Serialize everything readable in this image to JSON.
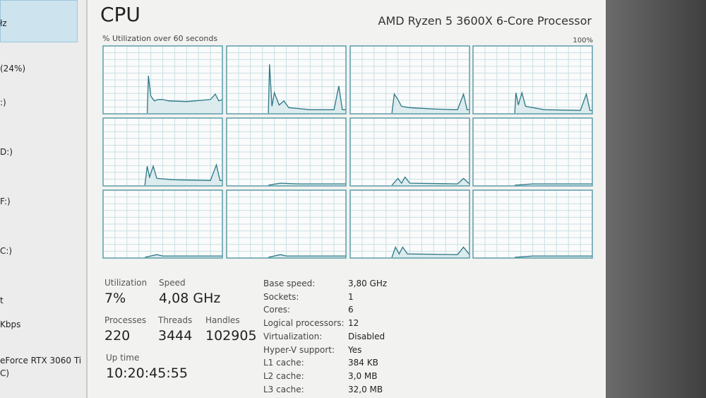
{
  "sidebar": {
    "items": [
      "łz",
      "(24%)",
      ":)",
      "D:)",
      "F:)",
      "C:)",
      "t",
      "Kbps",
      "eForce RTX 3060 Ti",
      "C)"
    ]
  },
  "header": {
    "title": "CPU",
    "processor": "AMD Ryzen 5 3600X 6-Core Processor",
    "graph_caption": "% Utilization over 60 seconds",
    "graph_max": "100%"
  },
  "stats": [
    {
      "label": "Utilization",
      "value": "7%"
    },
    {
      "label": "Speed",
      "value": "4,08 GHz"
    },
    {
      "label": "Processes",
      "value": "220"
    },
    {
      "label": "Threads",
      "value": "3444"
    },
    {
      "label": "Handles",
      "value": "102905"
    },
    {
      "label": "Up time",
      "value": "10:20:45:55"
    }
  ],
  "specs": [
    [
      "Base speed:",
      "3,80 GHz"
    ],
    [
      "Sockets:",
      "1"
    ],
    [
      "Cores:",
      "6"
    ],
    [
      "Logical processors:",
      "12"
    ],
    [
      "Virtualization:",
      "Disabled"
    ],
    [
      "Hyper-V support:",
      "Yes"
    ],
    [
      "L1 cache:",
      "384 KB"
    ],
    [
      "L2 cache:",
      "3,0 MB"
    ],
    [
      "L3 cache:",
      "32,0 MB"
    ]
  ]
}
